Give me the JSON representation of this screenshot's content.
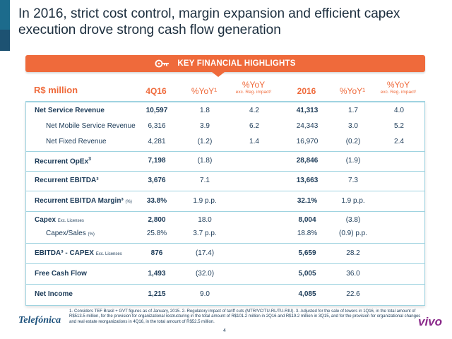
{
  "title": "In 2016, strict cost control, margin expansion and efficient capex execution drove strong cash flow generation",
  "banner": {
    "label": "KEY FINANCIAL HIGHLIGHTS",
    "icon": "key-icon"
  },
  "header": {
    "unit": "R$ million",
    "col1": "4Q16",
    "col2": "%YoY¹",
    "col3": "%YoY",
    "col3_sub": "exc. Reg. impact²",
    "col4": "2016",
    "col5": "%YoY¹",
    "col6": "%YoY",
    "col6_sub": "exc. Reg. impact²"
  },
  "rows": [
    {
      "label": "Net Service Revenue",
      "v1": "10,597",
      "v2": "1.8",
      "v3": "4.2",
      "v4": "41,313",
      "v5": "1.7",
      "v6": "4.0"
    },
    {
      "label": "Net Mobile Service Revenue",
      "v1": "6,316",
      "v2": "3.9",
      "v3": "6.2",
      "v4": "24,343",
      "v5": "3.0",
      "v6": "5.2"
    },
    {
      "label": "Net Fixed Revenue",
      "v1": "4,281",
      "v2": "(1.2)",
      "v3": "1.4",
      "v4": "16,970",
      "v5": "(0.2)",
      "v6": "2.4"
    },
    {
      "label": "Recurrent OpEx",
      "sup": "3",
      "v1": "7,198",
      "v2": "(1.8)",
      "v3": "",
      "v4": "28,846",
      "v5": "(1.9)",
      "v6": ""
    },
    {
      "label": "Recurrent EBITDA³",
      "v1": "3,676",
      "v2": "7.1",
      "v3": "",
      "v4": "13,663",
      "v5": "7.3",
      "v6": ""
    },
    {
      "label": "Recurrent EBITDA Margin³",
      "note": "(%)",
      "v1": "33.8%",
      "v2": "1.9 p.p.",
      "v3": "",
      "v4": "32.1%",
      "v5": "1.9 p.p.",
      "v6": ""
    },
    {
      "label": "Capex",
      "note": "Exc. Licenses",
      "v1": "2,800",
      "v2": "18.0",
      "v3": "",
      "v4": "8,004",
      "v5": "(3.8)",
      "v6": ""
    },
    {
      "label": "Capex/Sales",
      "note": "(%)",
      "v1": "25.8%",
      "v2": "3.7 p.p.",
      "v3": "",
      "v4": "18.8%",
      "v5": "(0.9) p.p.",
      "v6": ""
    },
    {
      "label": "EBITDA³ - CAPEX",
      "note": "Exc. Licenses",
      "v1": "876",
      "v2": "(17.4)",
      "v3": "",
      "v4": "5,659",
      "v5": "28.2",
      "v6": ""
    },
    {
      "label": "Free Cash Flow",
      "v1": "1,493",
      "v2": "(32.0)",
      "v3": "",
      "v4": "5,005",
      "v5": "36.0",
      "v6": ""
    },
    {
      "label": "Net Income",
      "v1": "1,215",
      "v2": "9.0",
      "v3": "",
      "v4": "4,085",
      "v5": "22.6",
      "v6": ""
    }
  ],
  "footnote": "1- Considers TEF Brasil + GVT figures as of January, 2015. 2- Regulatory impact of tariff cuts (MTR/VC/TU-RL/TU-RIU). 3- Adjusted for the sale of towers in 1Q16, in the total amount of R$513.5 million, for the provision for organizational restructuring in the total amount of R$101.2 million in 2Q16 and R$19.2 million in 3Q15, and for the provision for organizational changes and real estate reorganizations in 4Q16, in the total amount of R$52.5 million.",
  "logo_left": "Telefónica",
  "logo_right": "vivo",
  "page_number": "4",
  "colors": {
    "accent": "#ef6a3b",
    "border": "#9fd3e0",
    "text": "#1b3a57",
    "vivo": "#8a2a8a"
  }
}
